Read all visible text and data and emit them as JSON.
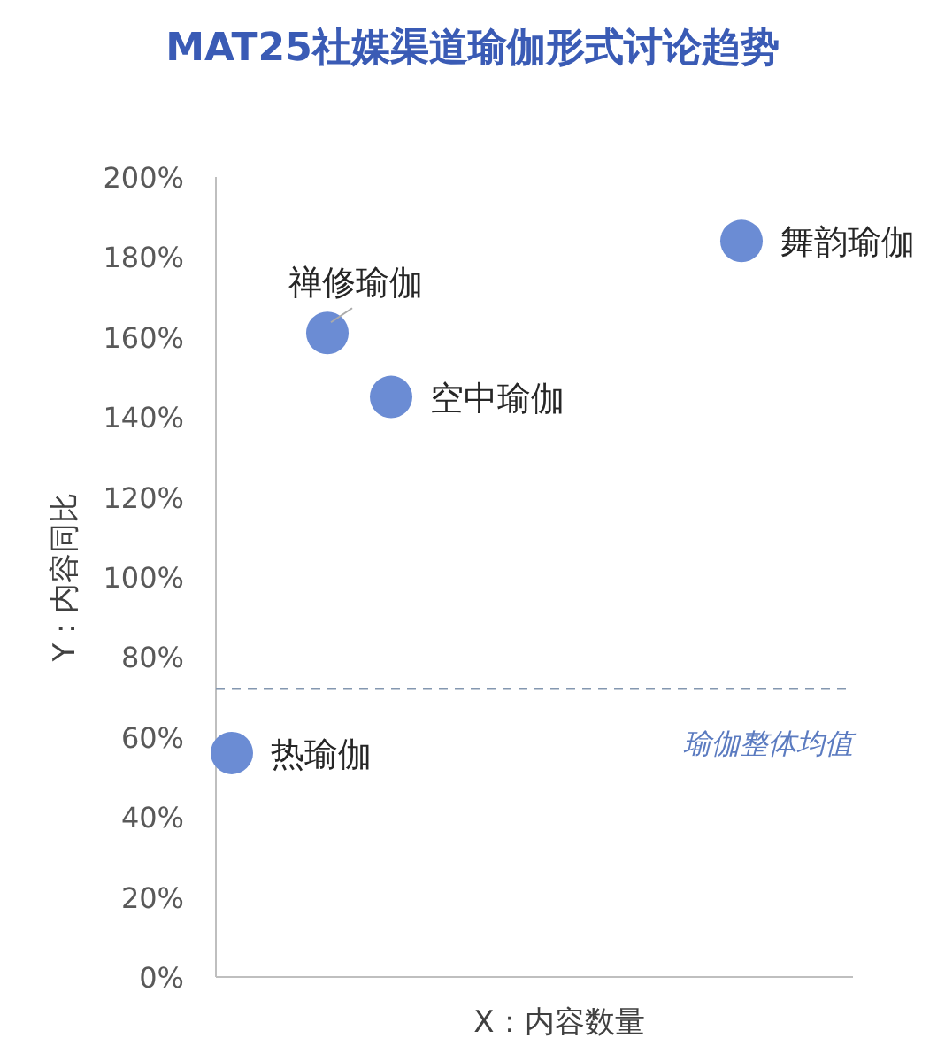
{
  "chart_data": {
    "type": "scatter",
    "title": "MAT25社媒渠道瑜伽形式讨论趋势",
    "xlabel": "X：内容数量",
    "ylabel": "Y：内容同比",
    "categories": [
      null,
      null,
      null,
      null,
      null,
      null,
      null,
      null,
      null,
      null,
      null,
      null,
      null,
      null,
      null,
      null,
      null,
      null,
      null,
      null
    ],
    "series": [
      {
        "name": "热瑜伽",
        "color": "#6b8cd4",
        "values": [
          56,
          null,
          null,
          null,
          null,
          null,
          null,
          null,
          null,
          null,
          null,
          null,
          null,
          null,
          null,
          null,
          null,
          null,
          null,
          null
        ]
      },
      {
        "name": "禅修瑜伽",
        "color": "#6b8cd4",
        "values": [
          null,
          null,
          null,
          161,
          null,
          null,
          null,
          null,
          null,
          null,
          null,
          null,
          null,
          null,
          null,
          null,
          null,
          null,
          null,
          null
        ]
      },
      {
        "name": "空中瑜伽",
        "color": "#6b8cd4",
        "values": [
          null,
          null,
          null,
          null,
          null,
          145,
          null,
          null,
          null,
          null,
          null,
          null,
          null,
          null,
          null,
          null,
          null,
          null,
          null,
          null
        ]
      },
      {
        "name": "舞韵瑜伽",
        "color": "#6b8cd4",
        "values": [
          null,
          null,
          null,
          null,
          null,
          null,
          null,
          null,
          null,
          null,
          null,
          null,
          null,
          null,
          null,
          null,
          184,
          null,
          null,
          null
        ]
      }
    ],
    "ylim": [
      0,
      200
    ],
    "yticks": [
      {
        "value": 0,
        "label": "0%"
      },
      {
        "value": 20,
        "label": "20%"
      },
      {
        "value": 40,
        "label": "40%"
      },
      {
        "value": 60,
        "label": "60%"
      },
      {
        "value": 80,
        "label": "80%"
      },
      {
        "value": 100,
        "label": "100%"
      },
      {
        "value": 120,
        "label": "120%"
      },
      {
        "value": 140,
        "label": "140%"
      },
      {
        "value": 160,
        "label": "160%"
      },
      {
        "value": 180,
        "label": "180%"
      },
      {
        "value": 200,
        "label": "200%"
      }
    ],
    "ref_lines": [
      {
        "axis": "y",
        "value": 72,
        "label": "瑜伽整体均值",
        "color": "#8497b0",
        "line_style": "dashed"
      }
    ],
    "marker": "circle"
  }
}
